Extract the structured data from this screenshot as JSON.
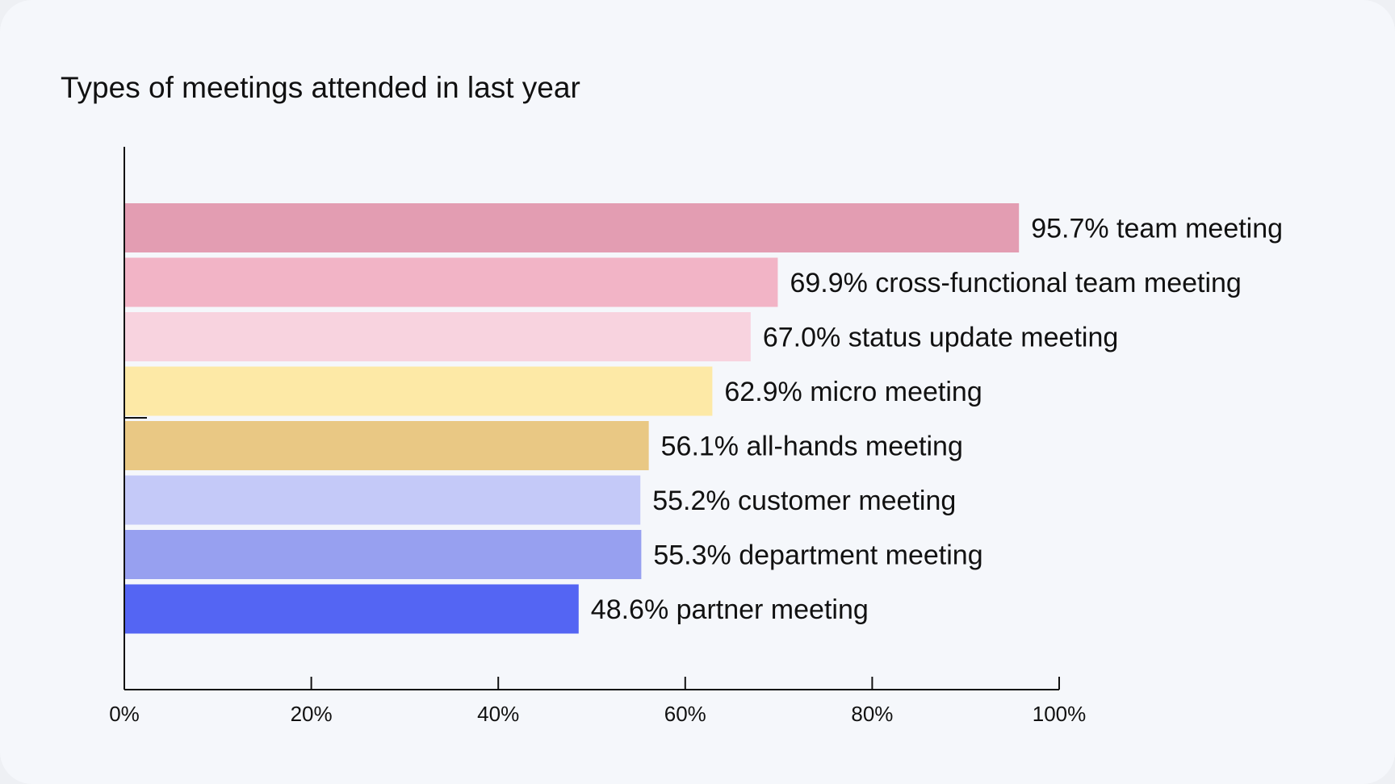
{
  "chart_data": {
    "type": "bar",
    "orientation": "horizontal",
    "title": "Types of meetings attended in last year",
    "categories": [
      "team meeting",
      "cross-functional team meeting",
      "status update meeting",
      "micro meeting",
      "all-hands meeting",
      "customer meeting",
      "department meeting",
      "partner meeting"
    ],
    "values": [
      95.7,
      69.9,
      67.0,
      62.9,
      56.1,
      55.2,
      55.3,
      48.6
    ],
    "data_labels": [
      "95.7% team meeting",
      "69.9% cross-functional team meeting",
      "67.0% status update meeting",
      "62.9% micro meeting",
      "56.1% all-hands meeting",
      "55.2% customer meeting",
      "55.3% department meeting",
      "48.6% partner meeting"
    ],
    "colors": [
      "#e39db2",
      "#f2b4c6",
      "#f8d3df",
      "#fde9a6",
      "#e9c884",
      "#c4c9f8",
      "#97a0f0",
      "#5465f3"
    ],
    "xlim": [
      0,
      100
    ],
    "x_ticks": [
      0,
      20,
      40,
      60,
      80,
      100
    ],
    "x_tick_labels": [
      "0%",
      "20%",
      "40%",
      "60%",
      "80%",
      "100%"
    ],
    "grid": false,
    "legend": "none"
  }
}
